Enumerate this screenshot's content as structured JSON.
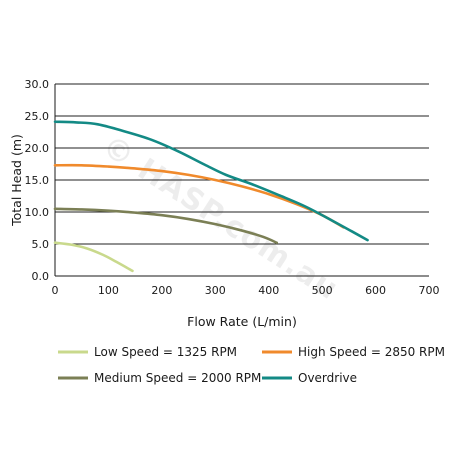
{
  "watermark": "© HASP.com.au",
  "chart_data": {
    "type": "line",
    "xlabel": "Flow Rate (L/min)",
    "ylabel": "Total Head (m)",
    "xlim": [
      0,
      700
    ],
    "ylim": [
      0,
      30
    ],
    "xticks": [
      0,
      100,
      200,
      300,
      400,
      500,
      600,
      700
    ],
    "yticks": [
      0,
      5,
      10,
      15,
      20,
      25,
      30
    ],
    "xtick_labels": [
      "0",
      "100",
      "200",
      "300",
      "400",
      "500",
      "600",
      "700"
    ],
    "ytick_labels": [
      "0.0",
      "5.0",
      "10.0",
      "15.0",
      "20.0",
      "25.0",
      "30.0"
    ],
    "grid": "horizontal",
    "legend_position": "bottom",
    "series": [
      {
        "name": "Low Speed = 1325 RPM",
        "color": "#c9d98c",
        "points": [
          [
            0,
            5.2
          ],
          [
            30,
            4.9
          ],
          [
            60,
            4.3
          ],
          [
            90,
            3.3
          ],
          [
            115,
            2.2
          ],
          [
            145,
            0.8
          ]
        ]
      },
      {
        "name": "High Speed = 2850 RPM",
        "color": "#f08a2c",
        "points": [
          [
            0,
            17.3
          ],
          [
            50,
            17.3
          ],
          [
            100,
            17.1
          ],
          [
            150,
            16.8
          ],
          [
            200,
            16.4
          ],
          [
            250,
            15.8
          ],
          [
            300,
            15.0
          ],
          [
            350,
            14.0
          ],
          [
            400,
            12.8
          ],
          [
            450,
            11.3
          ],
          [
            500,
            9.5
          ],
          [
            540,
            7.6
          ]
        ]
      },
      {
        "name": "Medium Speed = 2000 RPM",
        "color": "#7b7f55",
        "points": [
          [
            0,
            10.5
          ],
          [
            50,
            10.4
          ],
          [
            100,
            10.2
          ],
          [
            150,
            9.9
          ],
          [
            200,
            9.5
          ],
          [
            250,
            8.9
          ],
          [
            300,
            8.1
          ],
          [
            350,
            7.1
          ],
          [
            390,
            6.1
          ],
          [
            415,
            5.2
          ]
        ]
      },
      {
        "name": "Overdrive",
        "color": "#138a85",
        "points": [
          [
            0,
            24.1
          ],
          [
            40,
            24.0
          ],
          [
            80,
            23.7
          ],
          [
            130,
            22.6
          ],
          [
            180,
            21.3
          ],
          [
            230,
            19.5
          ],
          [
            280,
            17.4
          ],
          [
            320,
            15.8
          ],
          [
            370,
            14.3
          ],
          [
            420,
            12.6
          ],
          [
            470,
            10.8
          ],
          [
            520,
            8.6
          ],
          [
            555,
            7.0
          ],
          [
            585,
            5.6
          ]
        ]
      }
    ]
  }
}
